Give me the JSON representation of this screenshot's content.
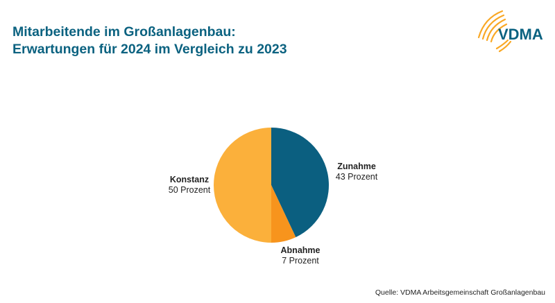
{
  "header": {
    "title_line1": "Mitarbeitende im Großanlagenbau:",
    "title_line2": "Erwartungen für 2024 im Vergleich zu 2023"
  },
  "logo": {
    "text": "VDMA",
    "icon": "vdma-arcs-logo",
    "text_color": "#0b6280",
    "arc_color": "#f9a825"
  },
  "chart_data": {
    "type": "pie",
    "title": "Mitarbeitende im Großanlagenbau: Erwartungen für 2024 im Vergleich zu 2023",
    "categories": [
      "Zunahme",
      "Abnahme",
      "Konstanz"
    ],
    "values": [
      43,
      7,
      50
    ],
    "unit": "Prozent",
    "colors": [
      "#0b5f80",
      "#f7941d",
      "#fbb03b"
    ],
    "labels": [
      {
        "name": "Zunahme",
        "value_text": "43 Prozent"
      },
      {
        "name": "Abnahme",
        "value_text": "7 Prozent"
      },
      {
        "name": "Konstanz",
        "value_text": "50 Prozent"
      }
    ],
    "start_angle": "12 o'clock, clockwise",
    "legend": "none (direct labels)"
  },
  "footer": {
    "source": "Quelle: VDMA Arbeitsgemeinschaft Großanlagenbau"
  }
}
